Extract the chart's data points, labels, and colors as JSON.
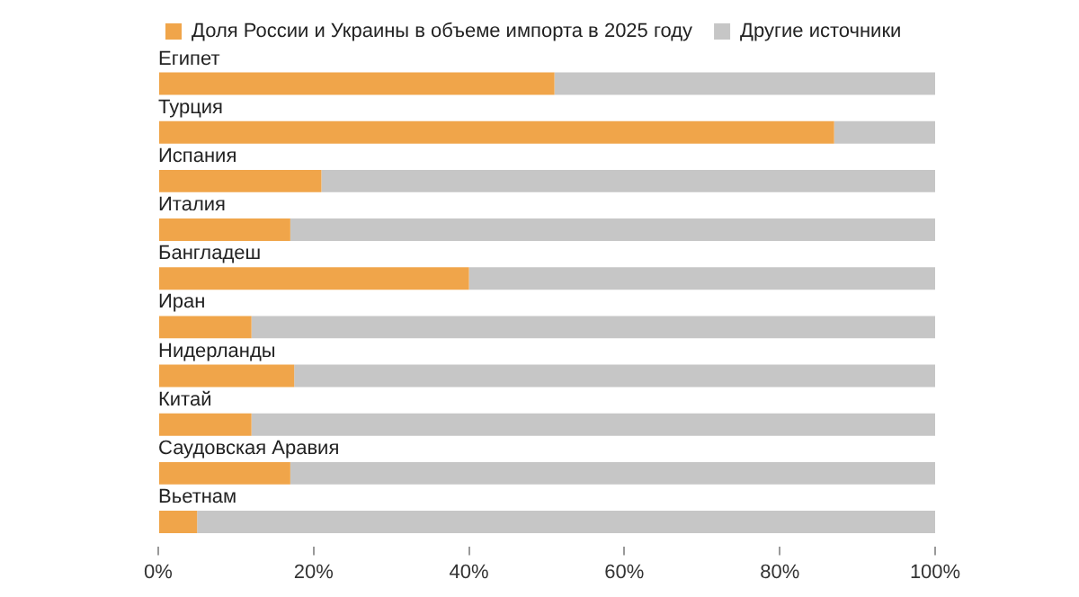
{
  "chart_data": {
    "type": "bar",
    "orientation": "horizontal",
    "stacked": true,
    "legend": "top left",
    "grid": false,
    "categories": [
      "Египет",
      "Турция",
      "Испания",
      "Италия",
      "Бангладеш",
      "Иран",
      "Нидерланды",
      "Китай",
      "Саудовская Аравия",
      "Вьетнам"
    ],
    "series": [
      {
        "name": "Доля России и Украины в объеме импорта в 2025 году",
        "color": "#f0a54a",
        "values": [
          51,
          87,
          21,
          17,
          40,
          12,
          17.5,
          12,
          17,
          5
        ]
      },
      {
        "name": "Другие источники",
        "color": "#c6c6c6",
        "values": [
          49,
          13,
          79,
          83,
          60,
          88,
          82.5,
          88,
          83,
          95
        ]
      }
    ],
    "xlim": [
      0,
      100
    ],
    "xticks": [
      {
        "value": 0,
        "label": "0%"
      },
      {
        "value": 20,
        "label": "20%"
      },
      {
        "value": 40,
        "label": "40%"
      },
      {
        "value": 60,
        "label": "60%"
      },
      {
        "value": 80,
        "label": "80%"
      },
      {
        "value": 100,
        "label": "100%"
      }
    ]
  }
}
